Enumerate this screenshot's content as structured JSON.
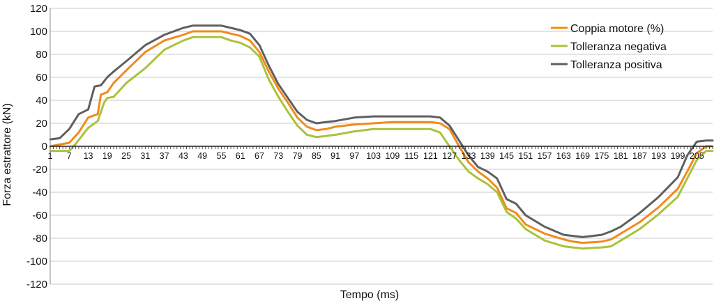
{
  "chart_data": {
    "type": "line",
    "title": "",
    "xlabel": "Tempo (ms)",
    "ylabel": "Forza estrattore (kN)",
    "xlim": [
      1,
      210
    ],
    "ylim": [
      -120,
      120
    ],
    "y_ticks": [
      120,
      100,
      80,
      60,
      40,
      20,
      0,
      -20,
      -40,
      -60,
      -80,
      -100,
      -120
    ],
    "x_ticks": [
      1,
      7,
      13,
      19,
      25,
      31,
      37,
      43,
      49,
      55,
      61,
      67,
      73,
      79,
      85,
      91,
      97,
      103,
      109,
      115,
      121,
      127,
      133,
      139,
      145,
      151,
      157,
      163,
      169,
      175,
      181,
      187,
      193,
      199,
      205
    ],
    "grid": true,
    "legend_position": "top-right",
    "series": [
      {
        "name": "Coppia motore (%)",
        "color": "#f28a1c",
        "x": [
          1,
          7,
          10,
          13,
          16,
          17,
          19,
          21,
          25,
          31,
          37,
          43,
          46,
          49,
          55,
          58,
          61,
          64,
          67,
          70,
          73,
          76,
          79,
          82,
          85,
          88,
          91,
          97,
          103,
          109,
          115,
          121,
          124,
          127,
          130,
          133,
          136,
          139,
          142,
          145,
          148,
          151,
          157,
          163,
          166,
          169,
          175,
          178,
          181,
          187,
          193,
          199,
          202,
          205,
          208,
          210
        ],
        "y": [
          0,
          3,
          12,
          25,
          28,
          45,
          47,
          55,
          66,
          82,
          92,
          97,
          100,
          100,
          100,
          98,
          96,
          92,
          82,
          65,
          50,
          38,
          25,
          17,
          14,
          15,
          17,
          19,
          20,
          21,
          21,
          21,
          20,
          15,
          0,
          -14,
          -22,
          -28,
          -36,
          -54,
          -58,
          -68,
          -76,
          -81,
          -83,
          -84,
          -83,
          -81,
          -76,
          -66,
          -53,
          -37,
          -22,
          -6,
          0,
          0
        ]
      },
      {
        "name": "Tolleranza negativa",
        "color": "#a9c23a",
        "x": [
          1,
          7,
          9,
          13,
          16,
          18,
          19,
          21,
          25,
          31,
          37,
          43,
          46,
          49,
          55,
          58,
          61,
          64,
          67,
          70,
          73,
          76,
          79,
          82,
          85,
          88,
          91,
          97,
          103,
          109,
          115,
          121,
          124,
          127,
          130,
          133,
          136,
          139,
          142,
          145,
          148,
          151,
          157,
          163,
          166,
          169,
          175,
          178,
          181,
          187,
          193,
          199,
          202,
          205,
          208,
          210
        ],
        "y": [
          -4,
          -4,
          2,
          16,
          22,
          38,
          42,
          43,
          55,
          68,
          84,
          92,
          95,
          95,
          95,
          92,
          90,
          86,
          78,
          58,
          43,
          30,
          18,
          10,
          8,
          9,
          10,
          13,
          15,
          15,
          15,
          15,
          12,
          0,
          -12,
          -22,
          -28,
          -33,
          -40,
          -57,
          -63,
          -72,
          -82,
          -87,
          -88,
          -89,
          -88,
          -87,
          -82,
          -72,
          -59,
          -44,
          -28,
          -12,
          -4,
          -4
        ]
      },
      {
        "name": "Tolleranza positiva",
        "color": "#5f5f5f",
        "x": [
          1,
          4,
          7,
          10,
          13,
          15,
          17,
          19,
          21,
          25,
          31,
          37,
          43,
          46,
          49,
          55,
          58,
          61,
          64,
          67,
          70,
          73,
          76,
          79,
          82,
          85,
          88,
          91,
          97,
          103,
          109,
          115,
          121,
          124,
          127,
          130,
          133,
          136,
          139,
          142,
          145,
          148,
          151,
          157,
          163,
          166,
          169,
          175,
          178,
          181,
          187,
          193,
          199,
          202,
          205,
          208,
          210
        ],
        "y": [
          6,
          7,
          15,
          28,
          32,
          52,
          53,
          60,
          65,
          74,
          88,
          97,
          103,
          105,
          105,
          105,
          103,
          101,
          98,
          88,
          70,
          54,
          42,
          30,
          23,
          20,
          21,
          22,
          25,
          26,
          26,
          26,
          26,
          25,
          18,
          5,
          -8,
          -18,
          -22,
          -28,
          -46,
          -50,
          -60,
          -70,
          -77,
          -78,
          -79,
          -77,
          -74,
          -70,
          -58,
          -44,
          -27,
          -8,
          4,
          5,
          5
        ]
      }
    ]
  }
}
